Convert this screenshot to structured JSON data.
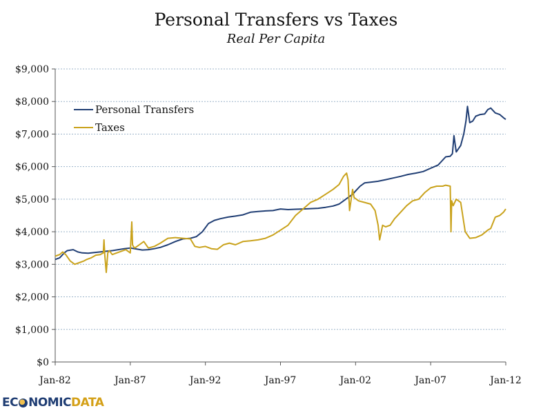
{
  "chart_data": {
    "type": "line",
    "title": "Personal Transfers vs Taxes",
    "subtitle": "Real Per Capita",
    "xlabel": "",
    "ylabel": "",
    "xlim": [
      1982.0,
      2012.0
    ],
    "ylim": [
      0,
      9000
    ],
    "y_ticks": [
      0,
      1000,
      2000,
      3000,
      4000,
      5000,
      6000,
      7000,
      8000,
      9000
    ],
    "y_tick_labels": [
      "$0",
      "$1,000",
      "$2,000",
      "$3,000",
      "$4,000",
      "$5,000",
      "$6,000",
      "$7,000",
      "$8,000",
      "$9,000"
    ],
    "x_ticks": [
      1982,
      1987,
      1992,
      1997,
      2002,
      2007,
      2012
    ],
    "x_tick_labels": [
      "Jan-82",
      "Jan-87",
      "Jan-92",
      "Jan-97",
      "Jan-02",
      "Jan-07",
      "Jan-12"
    ],
    "grid": "horizontal dashed",
    "legend_position": "top-left",
    "series": [
      {
        "name": "Personal Transfers",
        "color": "#1f3d73",
        "x": [
          1982.0,
          1982.3,
          1982.6,
          1982.8,
          1983.2,
          1983.5,
          1983.8,
          1984.2,
          1984.6,
          1985.0,
          1985.4,
          1985.8,
          1986.2,
          1986.6,
          1987.0,
          1987.4,
          1987.8,
          1988.2,
          1988.6,
          1989.0,
          1989.5,
          1990.0,
          1990.5,
          1991.0,
          1991.4,
          1991.8,
          1992.2,
          1992.6,
          1993.0,
          1993.5,
          1994.0,
          1994.5,
          1995.0,
          1995.5,
          1996.0,
          1996.5,
          1997.0,
          1997.5,
          1998.0,
          1998.5,
          1999.0,
          1999.5,
          2000.0,
          2000.5,
          2000.9,
          2001.2,
          2001.5,
          2001.8,
          2002.0,
          2002.3,
          2002.6,
          2003.0,
          2003.5,
          2004.0,
          2004.5,
          2005.0,
          2005.5,
          2006.0,
          2006.5,
          2007.0,
          2007.5,
          2008.0,
          2008.3,
          2008.45,
          2008.55,
          2008.7,
          2009.0,
          2009.2,
          2009.35,
          2009.45,
          2009.6,
          2009.8,
          2010.0,
          2010.3,
          2010.6,
          2010.8,
          2011.0,
          2011.3,
          2011.6,
          2011.85,
          2012.0
        ],
        "values": [
          3150,
          3200,
          3350,
          3420,
          3450,
          3380,
          3350,
          3340,
          3360,
          3380,
          3400,
          3420,
          3450,
          3480,
          3500,
          3470,
          3440,
          3450,
          3480,
          3520,
          3600,
          3700,
          3780,
          3800,
          3850,
          4000,
          4250,
          4350,
          4400,
          4450,
          4480,
          4520,
          4600,
          4620,
          4640,
          4650,
          4700,
          4680,
          4690,
          4700,
          4710,
          4720,
          4750,
          4790,
          4850,
          4950,
          5050,
          5150,
          5250,
          5400,
          5500,
          5520,
          5550,
          5600,
          5650,
          5700,
          5760,
          5800,
          5850,
          5950,
          6050,
          6300,
          6320,
          6400,
          6950,
          6450,
          6650,
          7000,
          7400,
          7850,
          7350,
          7400,
          7550,
          7600,
          7620,
          7750,
          7800,
          7650,
          7600,
          7500,
          7450
        ]
      },
      {
        "name": "Taxes",
        "color": "#c9a21b",
        "x": [
          1982.0,
          1982.3,
          1982.5,
          1982.7,
          1983.0,
          1983.3,
          1983.6,
          1983.9,
          1984.1,
          1984.4,
          1984.7,
          1985.0,
          1985.2,
          1985.25,
          1985.3,
          1985.4,
          1985.5,
          1985.6,
          1985.8,
          1986.1,
          1986.4,
          1986.7,
          1987.0,
          1987.1,
          1987.15,
          1987.2,
          1987.3,
          1987.6,
          1987.9,
          1988.2,
          1988.6,
          1989.0,
          1989.5,
          1990.0,
          1990.5,
          1991.0,
          1991.3,
          1991.6,
          1992.0,
          1992.4,
          1992.8,
          1993.2,
          1993.6,
          1994.0,
          1994.5,
          1995.0,
          1995.5,
          1996.0,
          1996.5,
          1997.0,
          1997.5,
          1998.0,
          1998.5,
          1999.0,
          1999.5,
          2000.0,
          2000.5,
          2000.9,
          2001.2,
          2001.4,
          2001.5,
          2001.6,
          2001.8,
          2001.9,
          2002.2,
          2002.6,
          2003.0,
          2003.3,
          2003.5,
          2003.6,
          2003.8,
          2004.0,
          2004.3,
          2004.6,
          2005.0,
          2005.4,
          2005.8,
          2006.2,
          2006.6,
          2007.0,
          2007.4,
          2007.8,
          2008.0,
          2008.3,
          2008.35,
          2008.4,
          2008.5,
          2008.7,
          2009.0,
          2009.3,
          2009.6,
          2010.0,
          2010.4,
          2010.8,
          2011.0,
          2011.3,
          2011.6,
          2011.85,
          2012.0
        ],
        "values": [
          3250,
          3300,
          3380,
          3300,
          3100,
          3000,
          3050,
          3100,
          3150,
          3200,
          3280,
          3300,
          3350,
          3750,
          3300,
          2750,
          3350,
          3420,
          3300,
          3350,
          3400,
          3450,
          3350,
          4300,
          3600,
          3550,
          3500,
          3600,
          3700,
          3500,
          3550,
          3650,
          3800,
          3820,
          3800,
          3780,
          3550,
          3520,
          3550,
          3480,
          3460,
          3600,
          3650,
          3600,
          3700,
          3720,
          3750,
          3800,
          3900,
          4050,
          4200,
          4500,
          4700,
          4900,
          5000,
          5150,
          5300,
          5450,
          5700,
          5800,
          5600,
          4650,
          5300,
          5050,
          4950,
          4900,
          4850,
          4650,
          4200,
          3750,
          4200,
          4150,
          4200,
          4400,
          4600,
          4800,
          4950,
          5000,
          5200,
          5350,
          5400,
          5400,
          5430,
          5400,
          4000,
          4950,
          4800,
          5000,
          4900,
          4000,
          3800,
          3820,
          3900,
          4050,
          4100,
          4450,
          4500,
          4600,
          4700
        ]
      }
    ]
  },
  "logo": {
    "part1": "EC",
    "part2": "NOMIC",
    "part3": "DATA"
  }
}
